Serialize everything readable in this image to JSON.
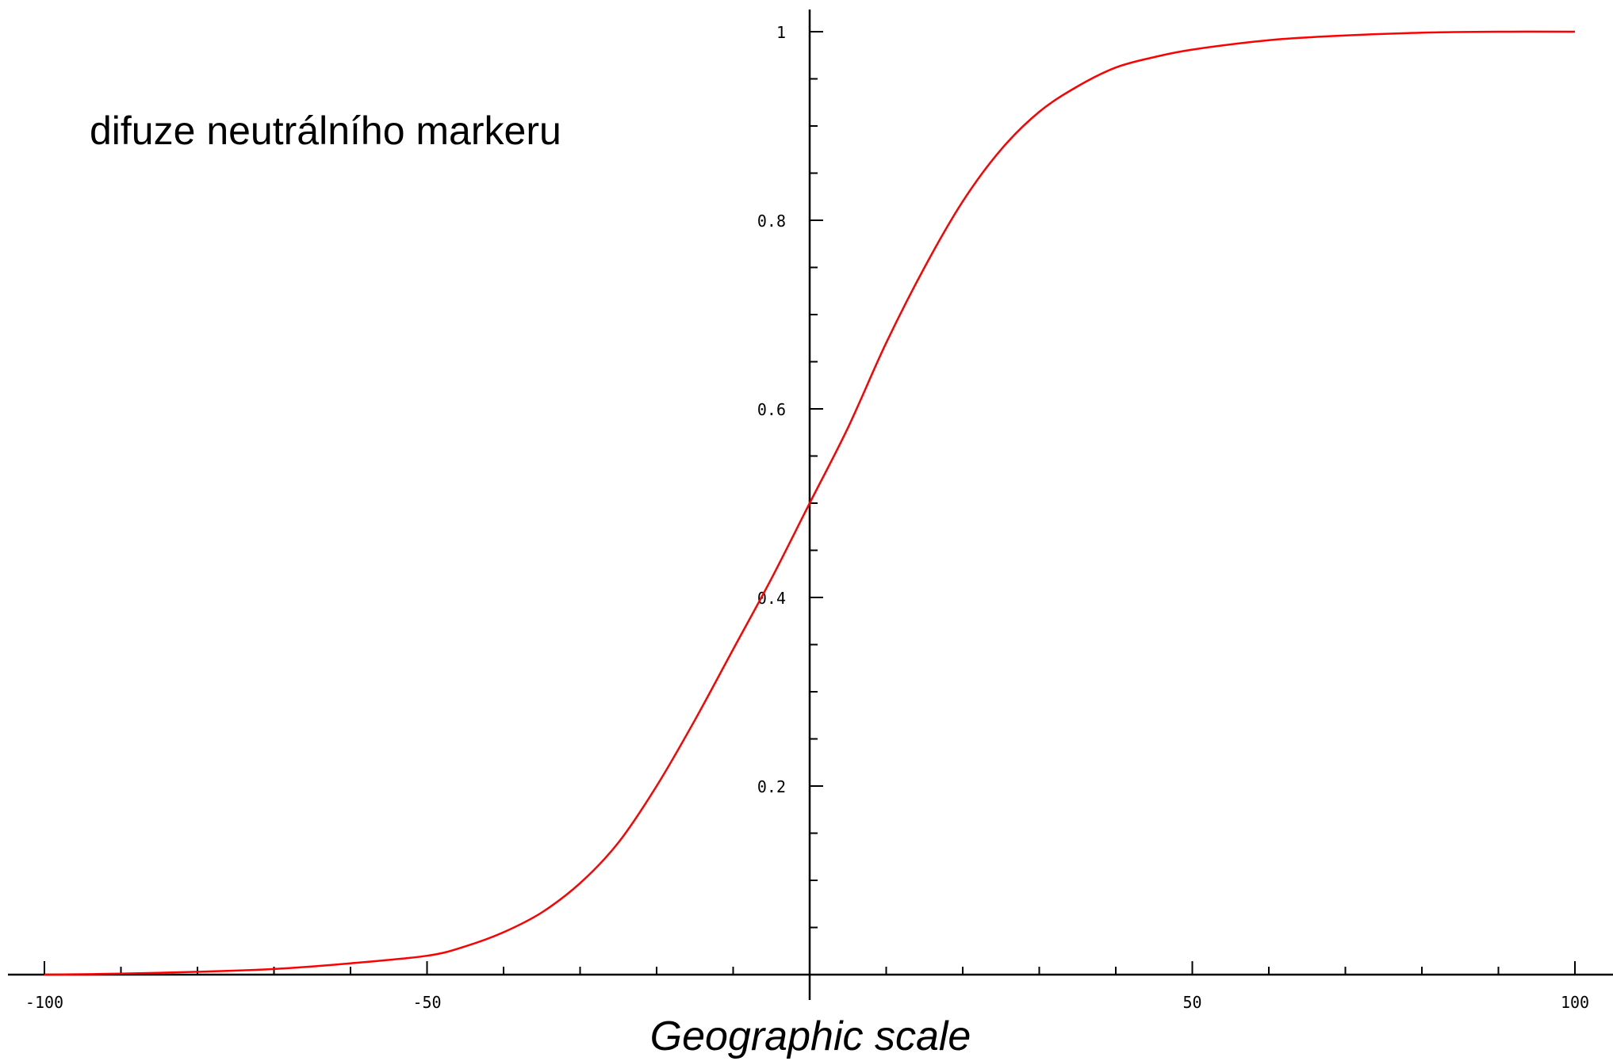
{
  "chart_data": {
    "type": "line",
    "title": "",
    "annotation": "difuze neutrálního markeru",
    "xlabel": "Geographic scale",
    "ylabel": "",
    "xlim": [
      -100,
      100
    ],
    "ylim": [
      0,
      1
    ],
    "x_ticks": [
      {
        "value": -100,
        "label": "-100"
      },
      {
        "value": -50,
        "label": "-50"
      },
      {
        "value": 50,
        "label": "50"
      },
      {
        "value": 100,
        "label": "100"
      }
    ],
    "y_ticks": [
      {
        "value": 0.2,
        "label": "0.2"
      },
      {
        "value": 0.4,
        "label": "0.4"
      },
      {
        "value": 0.6,
        "label": "0.6"
      },
      {
        "value": 0.8,
        "label": "0.8"
      },
      {
        "value": 1,
        "label": "1"
      }
    ],
    "x_minor_step": 10,
    "y_minor_step": 0.05,
    "grid": false,
    "line_color": "#ff0000",
    "series": [
      {
        "x": [
          -100,
          -90,
          -80,
          -70,
          -60,
          -50,
          -45,
          -40,
          -35,
          -30,
          -25,
          -20,
          -15,
          -10,
          -5,
          0,
          5,
          10,
          15,
          20,
          25,
          30,
          35,
          40,
          45,
          50,
          60,
          70,
          80,
          90,
          100
        ],
        "values": [
          0.0,
          0.001,
          0.003,
          0.006,
          0.012,
          0.02,
          0.03,
          0.045,
          0.066,
          0.097,
          0.14,
          0.2,
          0.27,
          0.345,
          0.42,
          0.5,
          0.58,
          0.67,
          0.75,
          0.82,
          0.875,
          0.915,
          0.942,
          0.962,
          0.973,
          0.981,
          0.991,
          0.996,
          0.999,
          1.0,
          1.0
        ]
      }
    ]
  }
}
